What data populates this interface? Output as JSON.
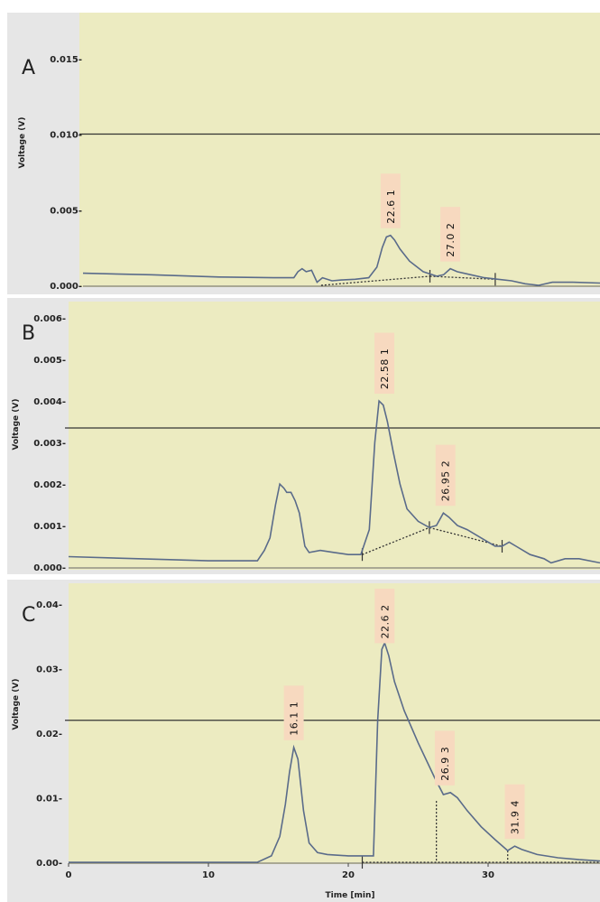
{
  "chart_data": [
    {
      "type": "line",
      "panel": "A",
      "ylabel": "Voltage (V)",
      "xlim": [
        0,
        38
      ],
      "ylim": [
        0,
        0.016
      ],
      "y_ticks": [
        "0.000-",
        "0.005-",
        "0.010-",
        "0.015-"
      ],
      "y_tick_values": [
        0,
        0.005,
        0.01,
        0.015
      ],
      "reference_line": 0.01,
      "x": [
        0,
        5,
        10,
        14,
        15.5,
        15.8,
        16.1,
        16.4,
        16.8,
        17.2,
        17.6,
        18.3,
        19,
        20,
        21,
        21.6,
        22,
        22.3,
        22.6,
        22.9,
        23.3,
        24,
        25,
        26,
        26.5,
        27,
        27.5,
        28.5,
        29.5,
        30.5,
        31.5,
        32.5,
        33.5,
        34.5,
        36,
        38
      ],
      "y": [
        0.0008,
        0.0007,
        0.00055,
        0.0005,
        0.0005,
        0.0009,
        0.0011,
        0.0009,
        0.001,
        0.0002,
        0.0005,
        0.0003,
        0.00035,
        0.0004,
        0.0005,
        0.0012,
        0.0025,
        0.0032,
        0.0033,
        0.003,
        0.0024,
        0.0016,
        0.0009,
        0.0006,
        0.0007,
        0.0011,
        0.0009,
        0.0007,
        0.0005,
        0.0004,
        0.0003,
        0.0001,
        0.0,
        0.0002,
        0.0002,
        0.00015
      ],
      "baseline_segments": [
        [
          [
            17.5,
            0.0
          ],
          [
            25.5,
            0.0006
          ]
        ],
        [
          [
            25.5,
            0.0006
          ],
          [
            30.3,
            0.0004
          ]
        ]
      ],
      "peak_marks": [
        [
          25.5,
          0.0006
        ],
        [
          30.3,
          0.0004
        ]
      ],
      "dropline_peaks": [],
      "peaks": [
        {
          "retention": "22.6",
          "index": "1",
          "x": 22.6,
          "y": 0.0033
        },
        {
          "retention": "27.0",
          "index": "2",
          "x": 27.0,
          "y": 0.0011
        }
      ]
    },
    {
      "type": "line",
      "panel": "B",
      "ylabel": "Voltage (V)",
      "xlim": [
        0,
        38
      ],
      "ylim": [
        0,
        0.0062
      ],
      "y_ticks": [
        "0.000-",
        "0.001-",
        "0.002-",
        "0.003-",
        "0.004-",
        "0.005-",
        "0.006-"
      ],
      "y_tick_values": [
        0,
        0.001,
        0.002,
        0.003,
        0.004,
        0.005,
        0.006
      ],
      "reference_line": 0.00335,
      "x": [
        0,
        5,
        10,
        13.5,
        14,
        14.4,
        14.8,
        15.1,
        15.4,
        15.6,
        15.9,
        16.2,
        16.5,
        16.9,
        17.2,
        18,
        19,
        20,
        20.9,
        21.5,
        21.9,
        22.2,
        22.5,
        22.8,
        23.2,
        23.7,
        24.2,
        25,
        25.8,
        26.3,
        26.8,
        27.2,
        27.8,
        28.5,
        29.5,
        30.5,
        31,
        31.5,
        32,
        33,
        34,
        34.5,
        35.5,
        36.5,
        38
      ],
      "y": [
        0.00025,
        0.0002,
        0.00015,
        0.00015,
        0.0004,
        0.0007,
        0.0015,
        0.002,
        0.0019,
        0.0018,
        0.0018,
        0.0016,
        0.0013,
        0.0005,
        0.00035,
        0.0004,
        0.00035,
        0.0003,
        0.0003,
        0.0009,
        0.003,
        0.004,
        0.0039,
        0.0035,
        0.0028,
        0.002,
        0.0014,
        0.0011,
        0.00095,
        0.001,
        0.0013,
        0.0012,
        0.001,
        0.0009,
        0.0007,
        0.0005,
        0.0005,
        0.0006,
        0.0005,
        0.0003,
        0.0002,
        0.0001,
        0.0002,
        0.0002,
        0.0001
      ],
      "baseline_segments": [
        [
          [
            21.0,
            0.0003
          ],
          [
            25.8,
            0.00095
          ]
        ],
        [
          [
            25.8,
            0.00095
          ],
          [
            31.0,
            0.0005
          ]
        ]
      ],
      "peak_marks": [
        [
          21.0,
          0.0003
        ],
        [
          25.8,
          0.00095
        ],
        [
          31.0,
          0.0005
        ]
      ],
      "dropline_peaks": [],
      "peaks": [
        {
          "retention": "22.58",
          "index": "1",
          "x": 22.58,
          "y": 0.004
        },
        {
          "retention": "26.95",
          "index": "2",
          "x": 26.95,
          "y": 0.0013
        }
      ]
    },
    {
      "type": "line",
      "panel": "C",
      "ylabel": "Voltage (V)",
      "xlabel": "Time [min]",
      "xlim": [
        0,
        38
      ],
      "ylim": [
        0,
        0.041
      ],
      "y_ticks": [
        "0.00-",
        "0.01-",
        "0.02-",
        "0.03-",
        "0.04-"
      ],
      "y_tick_values": [
        0,
        0.01,
        0.02,
        0.03,
        0.04
      ],
      "x_ticks": [
        "0",
        "10",
        "20",
        "30"
      ],
      "x_tick_values": [
        0,
        10,
        20,
        30
      ],
      "reference_line": 0.022,
      "x": [
        0,
        10,
        13.5,
        14.5,
        15.1,
        15.5,
        15.8,
        16.1,
        16.4,
        16.8,
        17.2,
        17.8,
        18.5,
        20,
        21,
        21.8,
        22.1,
        22.4,
        22.6,
        22.9,
        23.3,
        24,
        25,
        26.2,
        26.8,
        27.3,
        27.8,
        28.5,
        29.5,
        30.5,
        31.4,
        31.9,
        32.4,
        33.5,
        35,
        36.5,
        38
      ],
      "y": [
        0,
        0,
        0,
        0.001,
        0.004,
        0.009,
        0.014,
        0.0178,
        0.016,
        0.008,
        0.003,
        0.0015,
        0.0012,
        0.001,
        0.001,
        0.001,
        0.022,
        0.033,
        0.034,
        0.032,
        0.028,
        0.0235,
        0.0185,
        0.013,
        0.0105,
        0.0108,
        0.01,
        0.008,
        0.0055,
        0.0035,
        0.0018,
        0.0025,
        0.002,
        0.0012,
        0.0007,
        0.0004,
        0.0002
      ],
      "baseline_segments": [
        [
          [
            21.0,
            0.0
          ],
          [
            38,
            0.0
          ]
        ]
      ],
      "peak_marks": [
        [
          21.0,
          0.0
        ]
      ],
      "dropline_peaks": [
        [
          26.3,
          0.0095
        ],
        [
          31.4,
          0.0018
        ]
      ],
      "peaks": [
        {
          "retention": "16.1",
          "index": "1",
          "x": 16.1,
          "y": 0.0178
        },
        {
          "retention": "22.6",
          "index": "2",
          "x": 22.6,
          "y": 0.034
        },
        {
          "retention": "26.9",
          "index": "3",
          "x": 26.9,
          "y": 0.0108
        },
        {
          "retention": "31.9",
          "index": "4",
          "x": 31.9,
          "y": 0.0025
        }
      ]
    }
  ],
  "colors": {
    "plot_background": "#ecebc1",
    "frame_background": "#e6e6e6",
    "trace": "#5a6b8a",
    "reference_line": "#333333",
    "label_background": "#f7d9bf",
    "baseline": "#333333"
  }
}
